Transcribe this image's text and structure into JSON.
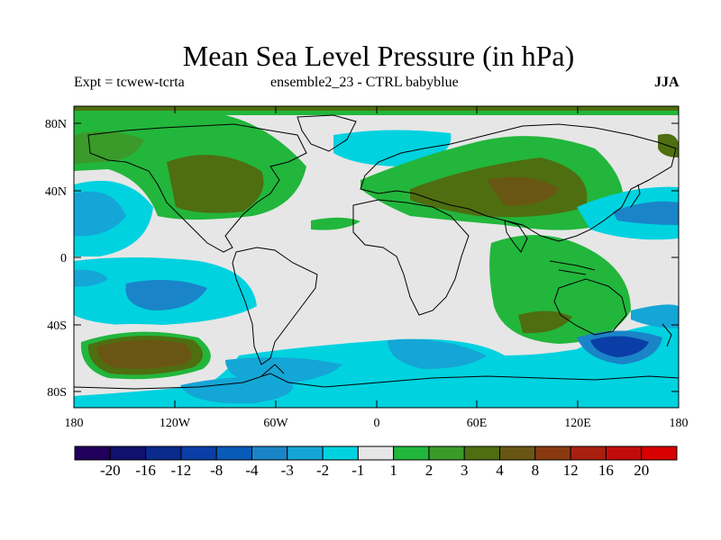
{
  "title": "Mean Sea Level Pressure (in hPa)",
  "subtitle_left": "Expt = tcwew-tcrta",
  "subtitle_mid": "ensemble2_23 - CTRL babyblue",
  "subtitle_right": "JJA",
  "lat_ticks": [
    "80N",
    "40N",
    "0",
    "40S",
    "80S"
  ],
  "lon_ticks": [
    "180",
    "120W",
    "60W",
    "0",
    "60E",
    "120E",
    "180"
  ],
  "colorbar": {
    "labels": [
      "-20",
      "-16",
      "-12",
      "-8",
      "-4",
      "-3",
      "-2",
      "-1",
      "1",
      "2",
      "3",
      "4",
      "8",
      "12",
      "16",
      "20"
    ],
    "colors": [
      "#20005a",
      "#10106e",
      "#0a2a8c",
      "#0a3ea6",
      "#0a5ab8",
      "#1a84c8",
      "#14a6d6",
      "#00d2e0",
      "#e6e6e6",
      "#22b63c",
      "#3a9a2a",
      "#4e6e10",
      "#6a5614",
      "#8a3a10",
      "#a82010",
      "#c20c0c",
      "#d80000"
    ]
  },
  "colors": {
    "ocean_neutral": "#e6e6e6",
    "coast": "#000000"
  }
}
